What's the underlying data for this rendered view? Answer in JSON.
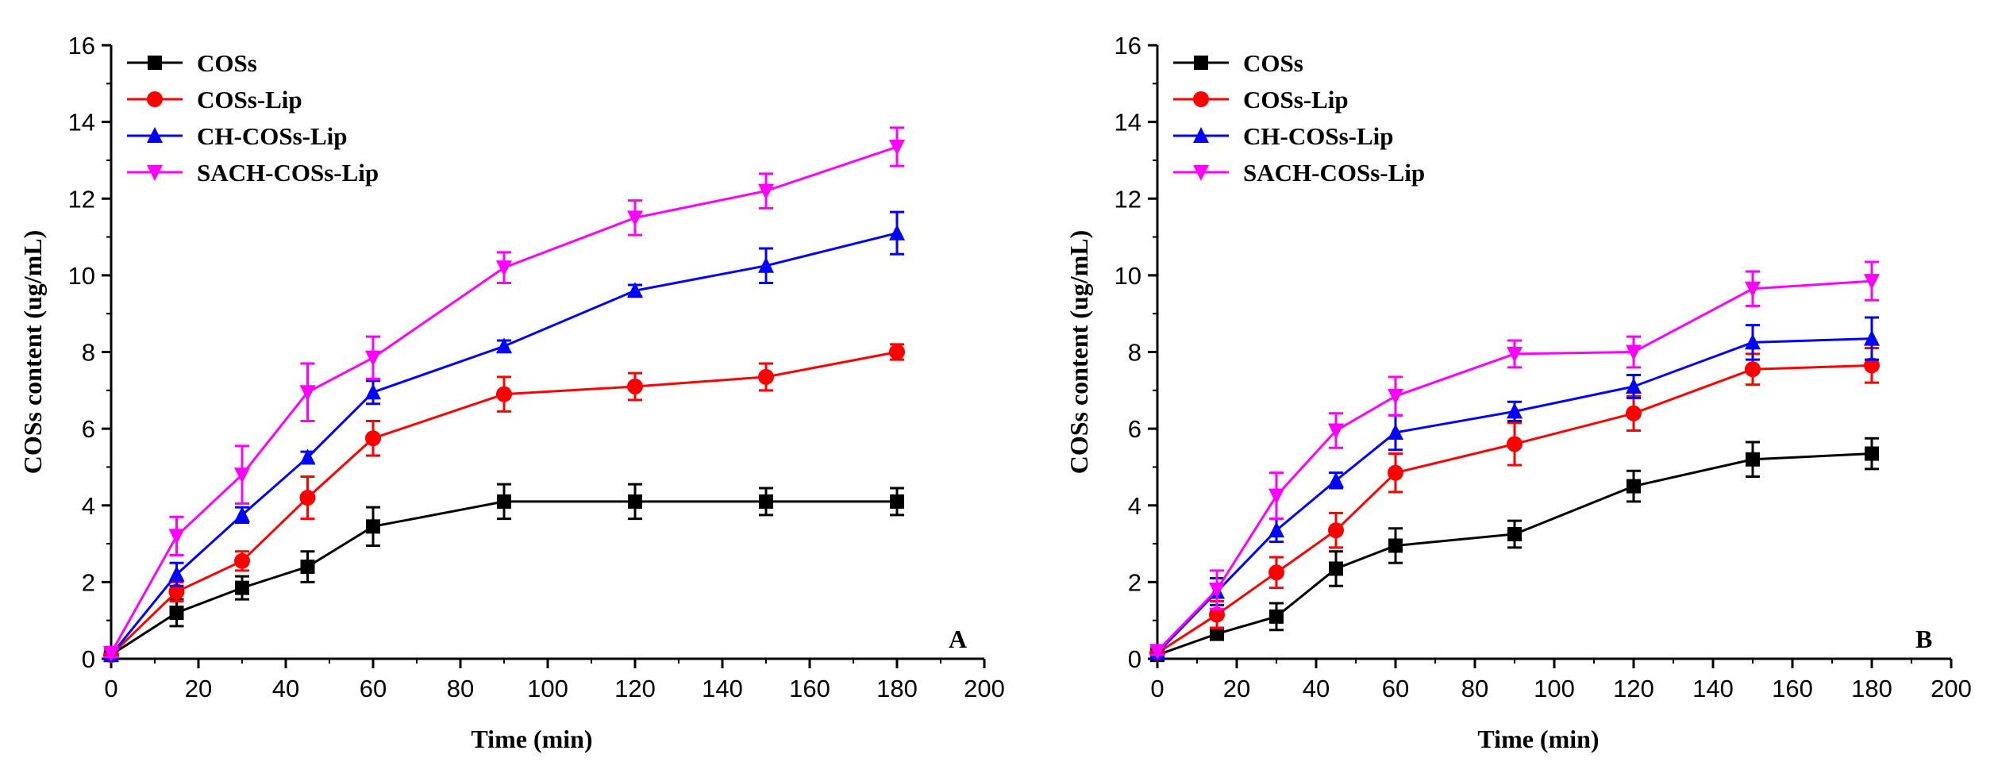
{
  "chart_data": [
    {
      "type": "line",
      "panel_label": "A",
      "xlabel": "Time (min)",
      "ylabel": "COSs content (ug/mL)",
      "xlim": [
        0,
        200
      ],
      "ylim": [
        0,
        16
      ],
      "xticks": [
        0,
        20,
        40,
        60,
        80,
        100,
        120,
        140,
        160,
        180,
        200
      ],
      "yticks": [
        0,
        2,
        4,
        6,
        8,
        10,
        12,
        14,
        16
      ],
      "legend_position": "top-left",
      "x": [
        0,
        15,
        30,
        45,
        60,
        90,
        120,
        150,
        180
      ],
      "series": [
        {
          "name": "COSs",
          "color": "#000000",
          "marker": "square",
          "values": [
            0.1,
            1.2,
            1.85,
            2.4,
            3.45,
            4.1,
            4.1,
            4.1,
            4.1
          ],
          "errors": [
            0.1,
            0.35,
            0.3,
            0.4,
            0.5,
            0.45,
            0.45,
            0.35,
            0.35
          ]
        },
        {
          "name": "COSs-Lip",
          "color": "#ff0000",
          "marker": "circle",
          "values": [
            0.1,
            1.75,
            2.55,
            4.2,
            5.75,
            6.9,
            7.1,
            7.35,
            8.0
          ],
          "errors": [
            0.1,
            0.25,
            0.25,
            0.55,
            0.45,
            0.45,
            0.35,
            0.35,
            0.2
          ]
        },
        {
          "name": "CH-COSs-Lip",
          "color": "#0000ff",
          "marker": "triangle-up",
          "values": [
            0.1,
            2.2,
            3.75,
            5.25,
            6.95,
            8.15,
            9.6,
            10.25,
            11.1
          ],
          "errors": [
            0.1,
            0.3,
            0.2,
            0.15,
            0.3,
            0.15,
            0.15,
            0.45,
            0.55
          ]
        },
        {
          "name": "SACH-COSs-Lip",
          "color": "#ff00ff",
          "marker": "triangle-down",
          "values": [
            0.15,
            3.2,
            4.8,
            6.95,
            7.85,
            10.2,
            11.5,
            12.2,
            13.35
          ],
          "errors": [
            0.1,
            0.5,
            0.75,
            0.75,
            0.55,
            0.4,
            0.45,
            0.45,
            0.5
          ]
        }
      ]
    },
    {
      "type": "line",
      "panel_label": "B",
      "xlabel": "Time (min)",
      "ylabel": "COSs content (ug/mL)",
      "xlim": [
        0,
        200
      ],
      "ylim": [
        0,
        16
      ],
      "xticks": [
        0,
        20,
        40,
        60,
        80,
        100,
        120,
        140,
        160,
        180,
        200
      ],
      "yticks": [
        0,
        2,
        4,
        6,
        8,
        10,
        12,
        14,
        16
      ],
      "legend_position": "top-left",
      "x": [
        0,
        15,
        30,
        45,
        60,
        90,
        120,
        150,
        180
      ],
      "series": [
        {
          "name": "COSs",
          "color": "#000000",
          "marker": "square",
          "values": [
            0.1,
            0.65,
            1.1,
            2.35,
            2.95,
            3.25,
            4.5,
            5.2,
            5.35
          ],
          "errors": [
            0.1,
            0.15,
            0.35,
            0.45,
            0.45,
            0.35,
            0.4,
            0.45,
            0.4
          ]
        },
        {
          "name": "COSs-Lip",
          "color": "#ff0000",
          "marker": "circle",
          "values": [
            0.15,
            1.15,
            2.25,
            3.35,
            4.85,
            5.6,
            6.4,
            7.55,
            7.65
          ],
          "errors": [
            0.1,
            0.35,
            0.4,
            0.45,
            0.5,
            0.55,
            0.45,
            0.4,
            0.45
          ]
        },
        {
          "name": "CH-COSs-Lip",
          "color": "#0000ff",
          "marker": "triangle-up",
          "values": [
            0.15,
            1.75,
            3.35,
            4.65,
            5.9,
            6.45,
            7.1,
            8.25,
            8.35
          ],
          "errors": [
            0.1,
            0.35,
            0.3,
            0.2,
            0.45,
            0.25,
            0.3,
            0.45,
            0.55
          ]
        },
        {
          "name": "SACH-COSs-Lip",
          "color": "#ff00ff",
          "marker": "triangle-down",
          "values": [
            0.2,
            1.8,
            4.25,
            5.95,
            6.85,
            7.95,
            8.0,
            9.65,
            9.85
          ],
          "errors": [
            0.1,
            0.5,
            0.6,
            0.45,
            0.5,
            0.35,
            0.4,
            0.45,
            0.5
          ]
        }
      ]
    }
  ]
}
